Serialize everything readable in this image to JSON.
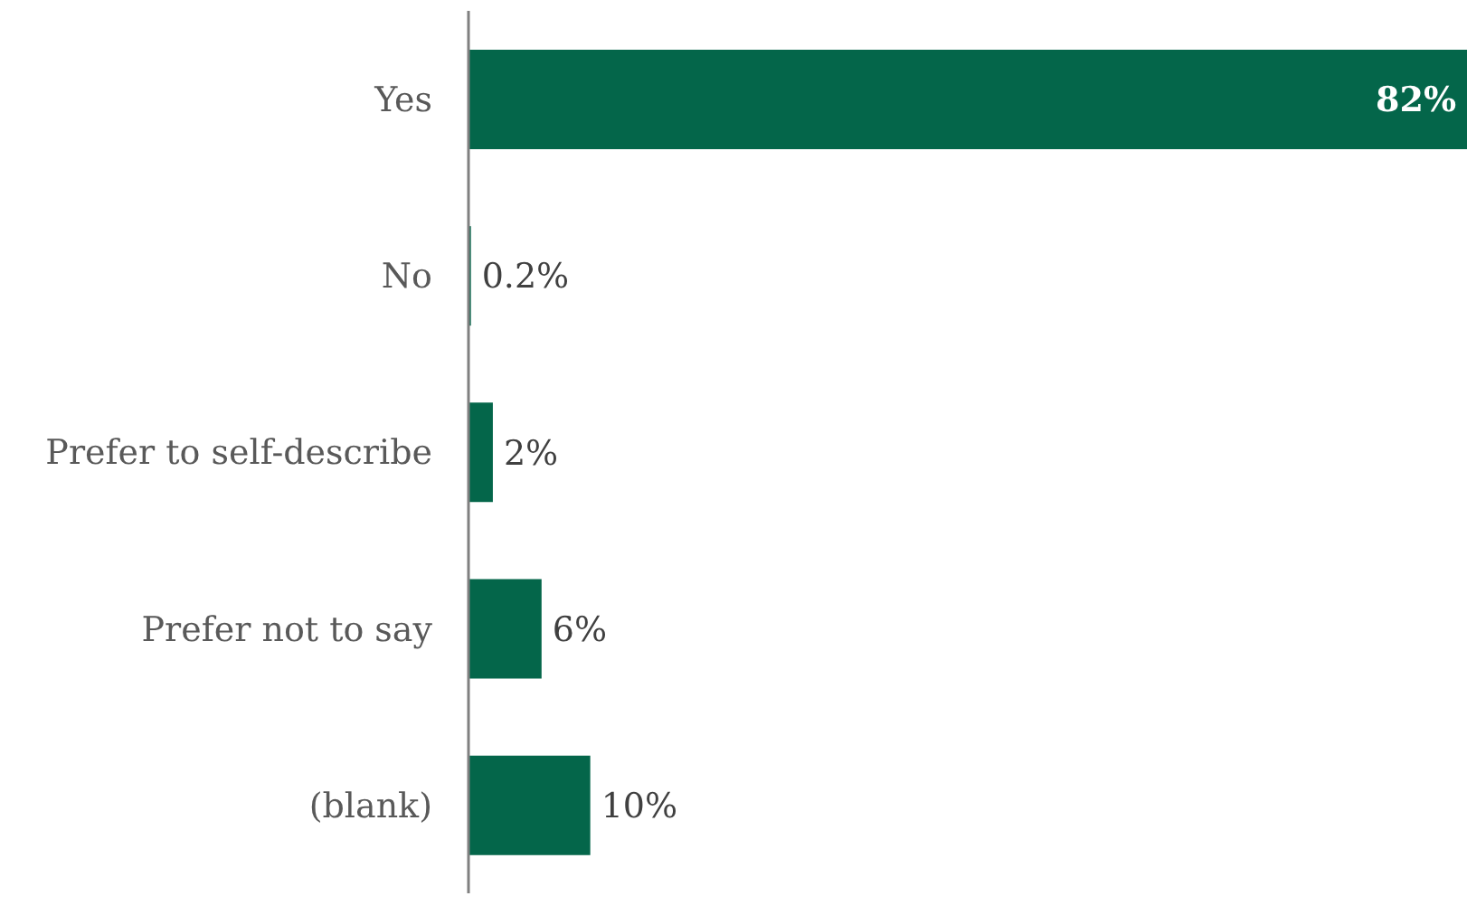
{
  "chart_data": {
    "type": "bar",
    "orientation": "horizontal",
    "categories": [
      "Yes",
      "No",
      "Prefer to self-describe",
      "Prefer not to say",
      "(blank)"
    ],
    "values": [
      82,
      0.2,
      2,
      6,
      10
    ],
    "value_labels": [
      "82%",
      "0.2%",
      "2%",
      "6%",
      "10%"
    ],
    "color": "#04664a",
    "grid": false,
    "legend": false
  }
}
